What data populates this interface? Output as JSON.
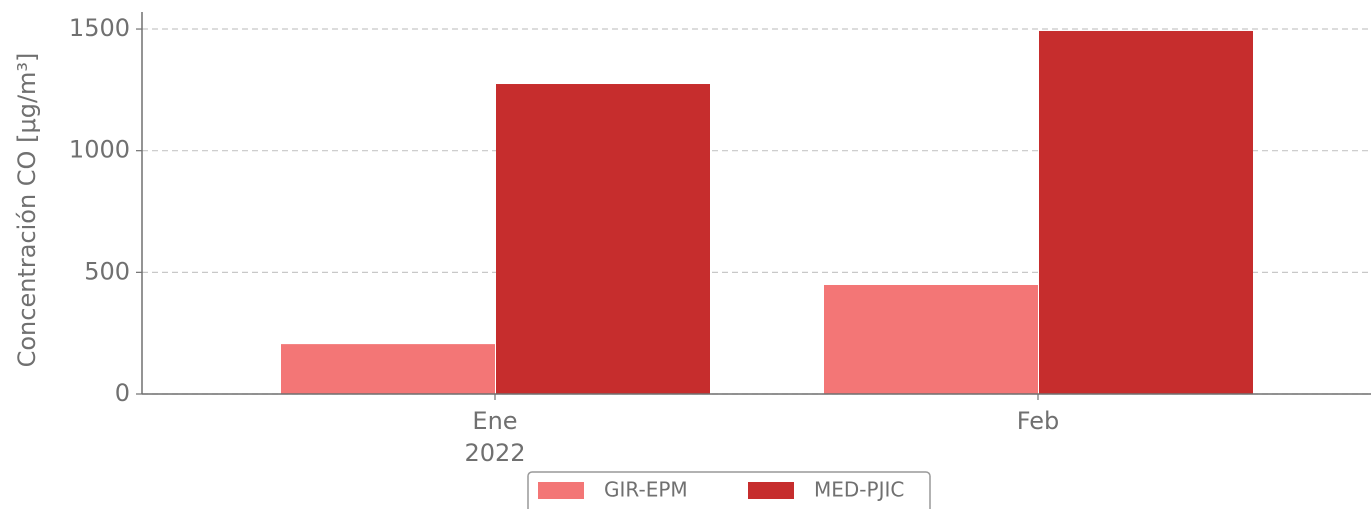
{
  "chart_data": {
    "type": "bar",
    "ylabel": "Concentración CO [μg/m³]",
    "categories": [
      "Ene",
      "Feb"
    ],
    "category_sublabels": [
      "2022",
      null
    ],
    "series": [
      {
        "name": "GIR-EPM",
        "color": "#f37676",
        "values": [
          205,
          448
        ]
      },
      {
        "name": "MED-PJIC",
        "color": "#c62d2d",
        "values": [
          1274,
          1492
        ]
      }
    ],
    "ylim": [
      0,
      1570
    ],
    "yticks": [
      0,
      500,
      1000,
      1500
    ],
    "grid": true,
    "legend": "bottom center"
  }
}
